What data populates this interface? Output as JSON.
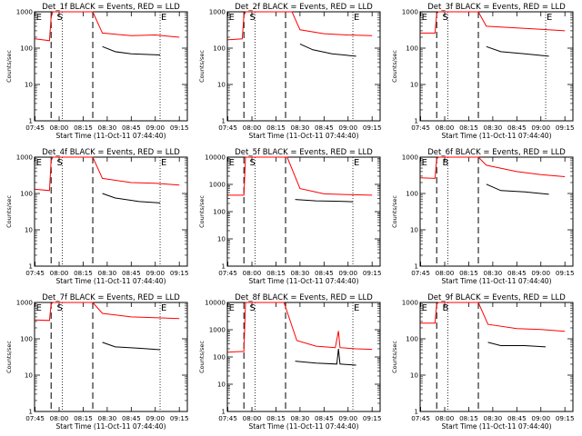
{
  "common": {
    "xlabel": "Start Time (11-Oct-11 07:44:40)",
    "ylabel": "Counts/sec",
    "x_ticks": [
      "07:45",
      "08:00",
      "08:15",
      "08:30",
      "08:45",
      "09:00",
      "09:15"
    ],
    "y_ticks": [
      "1",
      "10",
      "100",
      "1000"
    ],
    "colors": {
      "events": "#000000",
      "lld": "#ff0000"
    }
  },
  "chart_data": [
    {
      "type": "line",
      "title": "Det_1f BLACK = Events, RED = LLD",
      "markers": [
        "E",
        "S",
        "E"
      ],
      "ylim": [
        1,
        1000
      ],
      "yscale": "log",
      "xlim": [
        "07:44:40",
        "09:20"
      ],
      "series": [
        {
          "name": "LLD",
          "color": "#ff0000",
          "points": [
            [
              "07:45",
              180
            ],
            [
              "07:54",
              160
            ],
            [
              "07:55",
              700
            ],
            [
              "07:56",
              1000
            ],
            [
              "08:21",
              1000
            ],
            [
              "08:27",
              260
            ],
            [
              "08:45",
              220
            ],
            [
              "09:00",
              230
            ],
            [
              "09:15",
              200
            ]
          ]
        },
        {
          "name": "Events",
          "color": "#000000",
          "points": [
            [
              "08:27",
              110
            ],
            [
              "08:35",
              80
            ],
            [
              "08:45",
              70
            ],
            [
              "09:03",
              65
            ]
          ]
        }
      ]
    },
    {
      "type": "line",
      "title": "Det_2f BLACK = Events, RED = LLD",
      "markers": [
        "E",
        "S",
        "E"
      ],
      "ylim": [
        1,
        1000
      ],
      "yscale": "log",
      "xlim": [
        "07:44:40",
        "09:20"
      ],
      "series": [
        {
          "name": "LLD",
          "color": "#ff0000",
          "points": [
            [
              "07:45",
              170
            ],
            [
              "07:54",
              180
            ],
            [
              "07:55",
              800
            ],
            [
              "07:56",
              1000
            ],
            [
              "08:25",
              1000
            ],
            [
              "08:30",
              320
            ],
            [
              "08:45",
              250
            ],
            [
              "09:00",
              230
            ],
            [
              "09:15",
              220
            ]
          ]
        },
        {
          "name": "Events",
          "color": "#000000",
          "points": [
            [
              "08:30",
              130
            ],
            [
              "08:38",
              90
            ],
            [
              "08:50",
              70
            ],
            [
              "09:05",
              60
            ]
          ]
        }
      ]
    },
    {
      "type": "line",
      "title": "Det_3f BLACK = Events, RED = LLD",
      "markers": [
        "E",
        "S",
        "E"
      ],
      "ylim": [
        1,
        1000
      ],
      "yscale": "log",
      "xlim": [
        "07:44:40",
        "09:20"
      ],
      "series": [
        {
          "name": "LLD",
          "color": "#ff0000",
          "points": [
            [
              "07:45",
              260
            ],
            [
              "07:54",
              260
            ],
            [
              "07:55",
              900
            ],
            [
              "07:56",
              1000
            ],
            [
              "08:21",
              1000
            ],
            [
              "08:26",
              400
            ],
            [
              "08:45",
              360
            ],
            [
              "09:00",
              330
            ],
            [
              "09:15",
              300
            ]
          ]
        },
        {
          "name": "Events",
          "color": "#000000",
          "points": [
            [
              "08:26",
              110
            ],
            [
              "08:35",
              80
            ],
            [
              "08:50",
              70
            ],
            [
              "09:05",
              60
            ]
          ]
        }
      ]
    },
    {
      "type": "line",
      "title": "Det_4f BLACK = Events, RED = LLD",
      "markers": [
        "E",
        "S",
        "E"
      ],
      "ylim": [
        1,
        1000
      ],
      "yscale": "log",
      "xlim": [
        "07:44:40",
        "09:20"
      ],
      "series": [
        {
          "name": "LLD",
          "color": "#ff0000",
          "points": [
            [
              "07:45",
              130
            ],
            [
              "07:54",
              120
            ],
            [
              "07:55",
              800
            ],
            [
              "07:56",
              1000
            ],
            [
              "08:21",
              1000
            ],
            [
              "08:27",
              260
            ],
            [
              "08:45",
              200
            ],
            [
              "09:00",
              190
            ],
            [
              "09:15",
              170
            ]
          ]
        },
        {
          "name": "Events",
          "color": "#000000",
          "points": [
            [
              "08:27",
              100
            ],
            [
              "08:35",
              75
            ],
            [
              "08:50",
              60
            ],
            [
              "09:03",
              55
            ]
          ]
        }
      ]
    },
    {
      "type": "line",
      "title": "Det_5f BLACK = Events, RED = LLD",
      "markers": [
        "E",
        "S",
        "E"
      ],
      "ylim": [
        1,
        10000
      ],
      "yscale": "log",
      "xlim": [
        "07:44:40",
        "09:20"
      ],
      "series": [
        {
          "name": "LLD",
          "color": "#ff0000",
          "points": [
            [
              "07:45",
              400
            ],
            [
              "07:55",
              400
            ],
            [
              "07:56",
              10000
            ],
            [
              "08:22",
              10000
            ],
            [
              "08:30",
              700
            ],
            [
              "08:45",
              450
            ],
            [
              "09:00",
              420
            ],
            [
              "09:15",
              400
            ]
          ]
        },
        {
          "name": "Events",
          "color": "#000000",
          "points": [
            [
              "08:27",
              280
            ],
            [
              "08:40",
              250
            ],
            [
              "08:55",
              240
            ],
            [
              "09:03",
              230
            ]
          ]
        }
      ]
    },
    {
      "type": "line",
      "title": "Det_6f BLACK = Events, RED = LLD",
      "markers": [
        "E",
        "B"
      ],
      "ylim": [
        1,
        1000
      ],
      "yscale": "log",
      "xlim": [
        "07:44:40",
        "09:20"
      ],
      "series": [
        {
          "name": "LLD",
          "color": "#ff0000",
          "points": [
            [
              "07:45",
              270
            ],
            [
              "07:54",
              260
            ],
            [
              "07:55",
              900
            ],
            [
              "07:56",
              1000
            ],
            [
              "08:21",
              1000
            ],
            [
              "08:26",
              600
            ],
            [
              "08:45",
              400
            ],
            [
              "09:00",
              330
            ],
            [
              "09:15",
              290
            ]
          ]
        },
        {
          "name": "Events",
          "color": "#000000",
          "points": [
            [
              "08:26",
              180
            ],
            [
              "08:35",
              120
            ],
            [
              "08:50",
              110
            ],
            [
              "09:05",
              95
            ]
          ]
        }
      ]
    },
    {
      "type": "line",
      "title": "Det_7f BLACK = Events, RED = LLD",
      "markers": [
        "E",
        "S",
        "E"
      ],
      "ylim": [
        1,
        1000
      ],
      "yscale": "log",
      "xlim": [
        "07:44:40",
        "09:20"
      ],
      "series": [
        {
          "name": "LLD",
          "color": "#ff0000",
          "points": [
            [
              "07:45",
              330
            ],
            [
              "07:54",
              320
            ],
            [
              "07:55",
              900
            ],
            [
              "07:56",
              1000
            ],
            [
              "08:21",
              1000
            ],
            [
              "08:27",
              500
            ],
            [
              "08:45",
              400
            ],
            [
              "09:00",
              380
            ],
            [
              "09:15",
              360
            ]
          ]
        },
        {
          "name": "Events",
          "color": "#000000",
          "points": [
            [
              "08:27",
              80
            ],
            [
              "08:35",
              60
            ],
            [
              "08:50",
              55
            ],
            [
              "09:03",
              50
            ]
          ]
        }
      ]
    },
    {
      "type": "line",
      "title": "Det_8f BLACK = Events, RED = LLD",
      "markers": [
        "E",
        "S",
        "E"
      ],
      "ylim": [
        1,
        10000
      ],
      "yscale": "log",
      "xlim": [
        "07:44:40",
        "09:20"
      ],
      "series": [
        {
          "name": "LLD",
          "color": "#ff0000",
          "points": [
            [
              "07:45",
              150
            ],
            [
              "07:55",
              160
            ],
            [
              "07:56",
              10000
            ],
            [
              "08:20",
              10000
            ],
            [
              "08:28",
              400
            ],
            [
              "08:40",
              250
            ],
            [
              "08:52",
              220
            ],
            [
              "08:54",
              900
            ],
            [
              "08:55",
              220
            ],
            [
              "09:05",
              200
            ],
            [
              "09:15",
              190
            ]
          ]
        },
        {
          "name": "Events",
          "color": "#000000",
          "points": [
            [
              "08:27",
              70
            ],
            [
              "08:40",
              60
            ],
            [
              "08:53",
              55
            ],
            [
              "08:54",
              200
            ],
            [
              "08:55",
              55
            ],
            [
              "09:05",
              50
            ]
          ]
        }
      ]
    },
    {
      "type": "line",
      "title": "Det_9f BLACK = Events, RED = LLD",
      "markers": [
        "E",
        "B"
      ],
      "ylim": [
        1,
        1000
      ],
      "yscale": "log",
      "xlim": [
        "07:44:40",
        "09:20"
      ],
      "series": [
        {
          "name": "LLD",
          "color": "#ff0000",
          "points": [
            [
              "07:45",
              270
            ],
            [
              "07:54",
              270
            ],
            [
              "07:55",
              900
            ],
            [
              "07:56",
              1000
            ],
            [
              "08:21",
              1000
            ],
            [
              "08:27",
              250
            ],
            [
              "08:45",
              190
            ],
            [
              "09:00",
              180
            ],
            [
              "09:15",
              160
            ]
          ]
        },
        {
          "name": "Events",
          "color": "#000000",
          "points": [
            [
              "08:27",
              80
            ],
            [
              "08:35",
              65
            ],
            [
              "08:50",
              65
            ],
            [
              "09:03",
              60
            ]
          ]
        }
      ]
    }
  ]
}
